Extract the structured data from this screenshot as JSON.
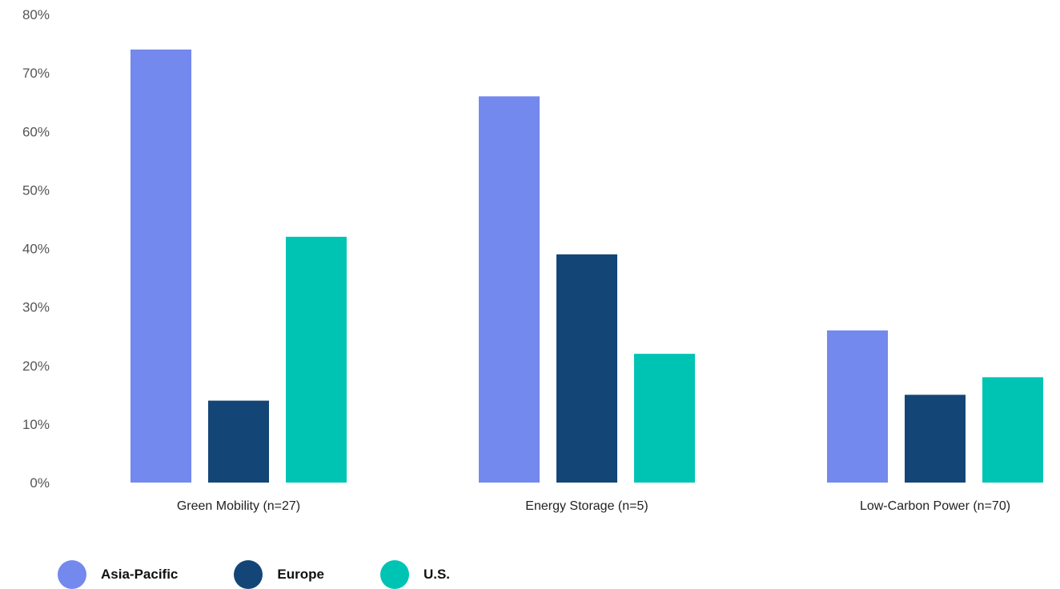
{
  "chart_data": {
    "type": "bar",
    "categories": [
      "Green Mobility (n=27)",
      "Energy Storage (n=5)",
      "Low-Carbon Power (n=70)"
    ],
    "series": [
      {
        "name": "Asia-Pacific",
        "color": "#7389ed",
        "values": [
          74,
          66,
          26
        ]
      },
      {
        "name": "Europe",
        "color": "#134677",
        "values": [
          14,
          39,
          15
        ]
      },
      {
        "name": "U.S.",
        "color": "#00c4b3",
        "values": [
          42,
          22,
          18
        ]
      }
    ],
    "ylim": [
      0,
      80
    ],
    "yticks": [
      "0%",
      "10%",
      "20%",
      "30%",
      "40%",
      "50%",
      "60%",
      "70%",
      "80%"
    ],
    "ytick_values": [
      0,
      10,
      20,
      30,
      40,
      50,
      60,
      70,
      80
    ],
    "grid": false,
    "legend_position": "bottom-left"
  }
}
